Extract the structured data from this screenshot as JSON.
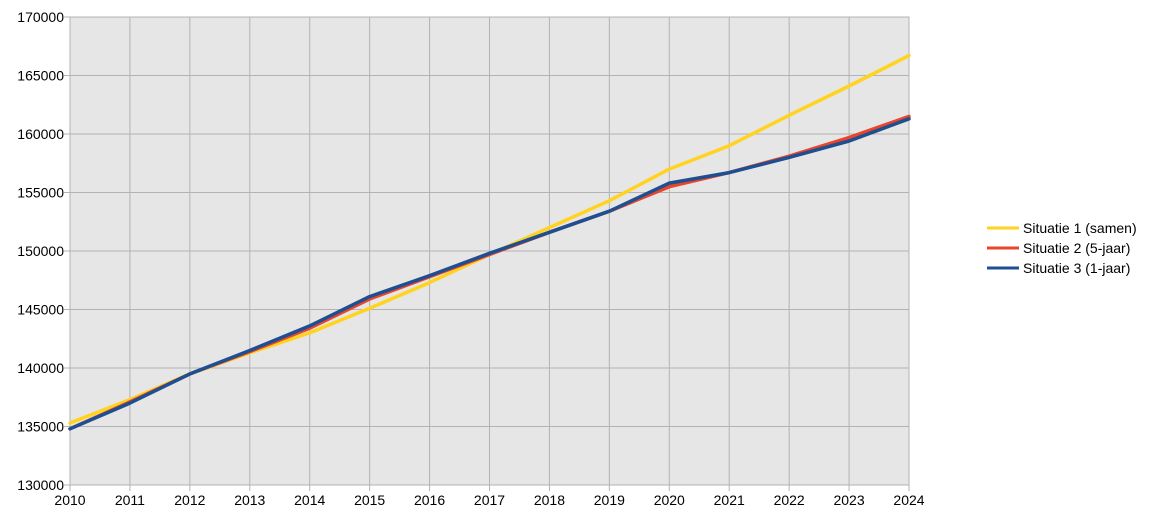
{
  "chart_data": {
    "type": "line",
    "title": "",
    "xlabel": "",
    "ylabel": "",
    "x": [
      2010,
      2011,
      2012,
      2013,
      2014,
      2015,
      2016,
      2017,
      2018,
      2019,
      2020,
      2021,
      2022,
      2023,
      2024
    ],
    "xticks": [
      "2010",
      "2011",
      "2012",
      "2013",
      "2014",
      "2015",
      "2016",
      "2017",
      "2018",
      "2019",
      "2020",
      "2021",
      "2022",
      "2023",
      "2024"
    ],
    "ylim": [
      130000,
      170000
    ],
    "yticks": [
      "130000",
      "135000",
      "140000",
      "145000",
      "150000",
      "155000",
      "160000",
      "165000",
      "170000"
    ],
    "grid": true,
    "legend_position": "right",
    "plot_background": "#e6e6e6",
    "grid_color": "#b3b3b3",
    "series": [
      {
        "name": "Situatie 1 (samen)",
        "color": "#ffd320",
        "values": [
          135300,
          137300,
          139500,
          141300,
          143000,
          145100,
          147300,
          149700,
          152000,
          154300,
          157000,
          159000,
          161600,
          164100,
          166700
        ]
      },
      {
        "name": "Situatie 2 (5-jaar)",
        "color": "#e8452c",
        "values": [
          134800,
          137100,
          139500,
          141400,
          143400,
          145900,
          147800,
          149700,
          151600,
          153400,
          155500,
          156700,
          158100,
          159700,
          161500
        ]
      },
      {
        "name": "Situatie 3 (1-jaar)",
        "color": "#1d4f91",
        "values": [
          134800,
          137000,
          139500,
          141500,
          143600,
          146100,
          147900,
          149800,
          151600,
          153400,
          155800,
          156700,
          158000,
          159400,
          161300
        ]
      }
    ]
  }
}
